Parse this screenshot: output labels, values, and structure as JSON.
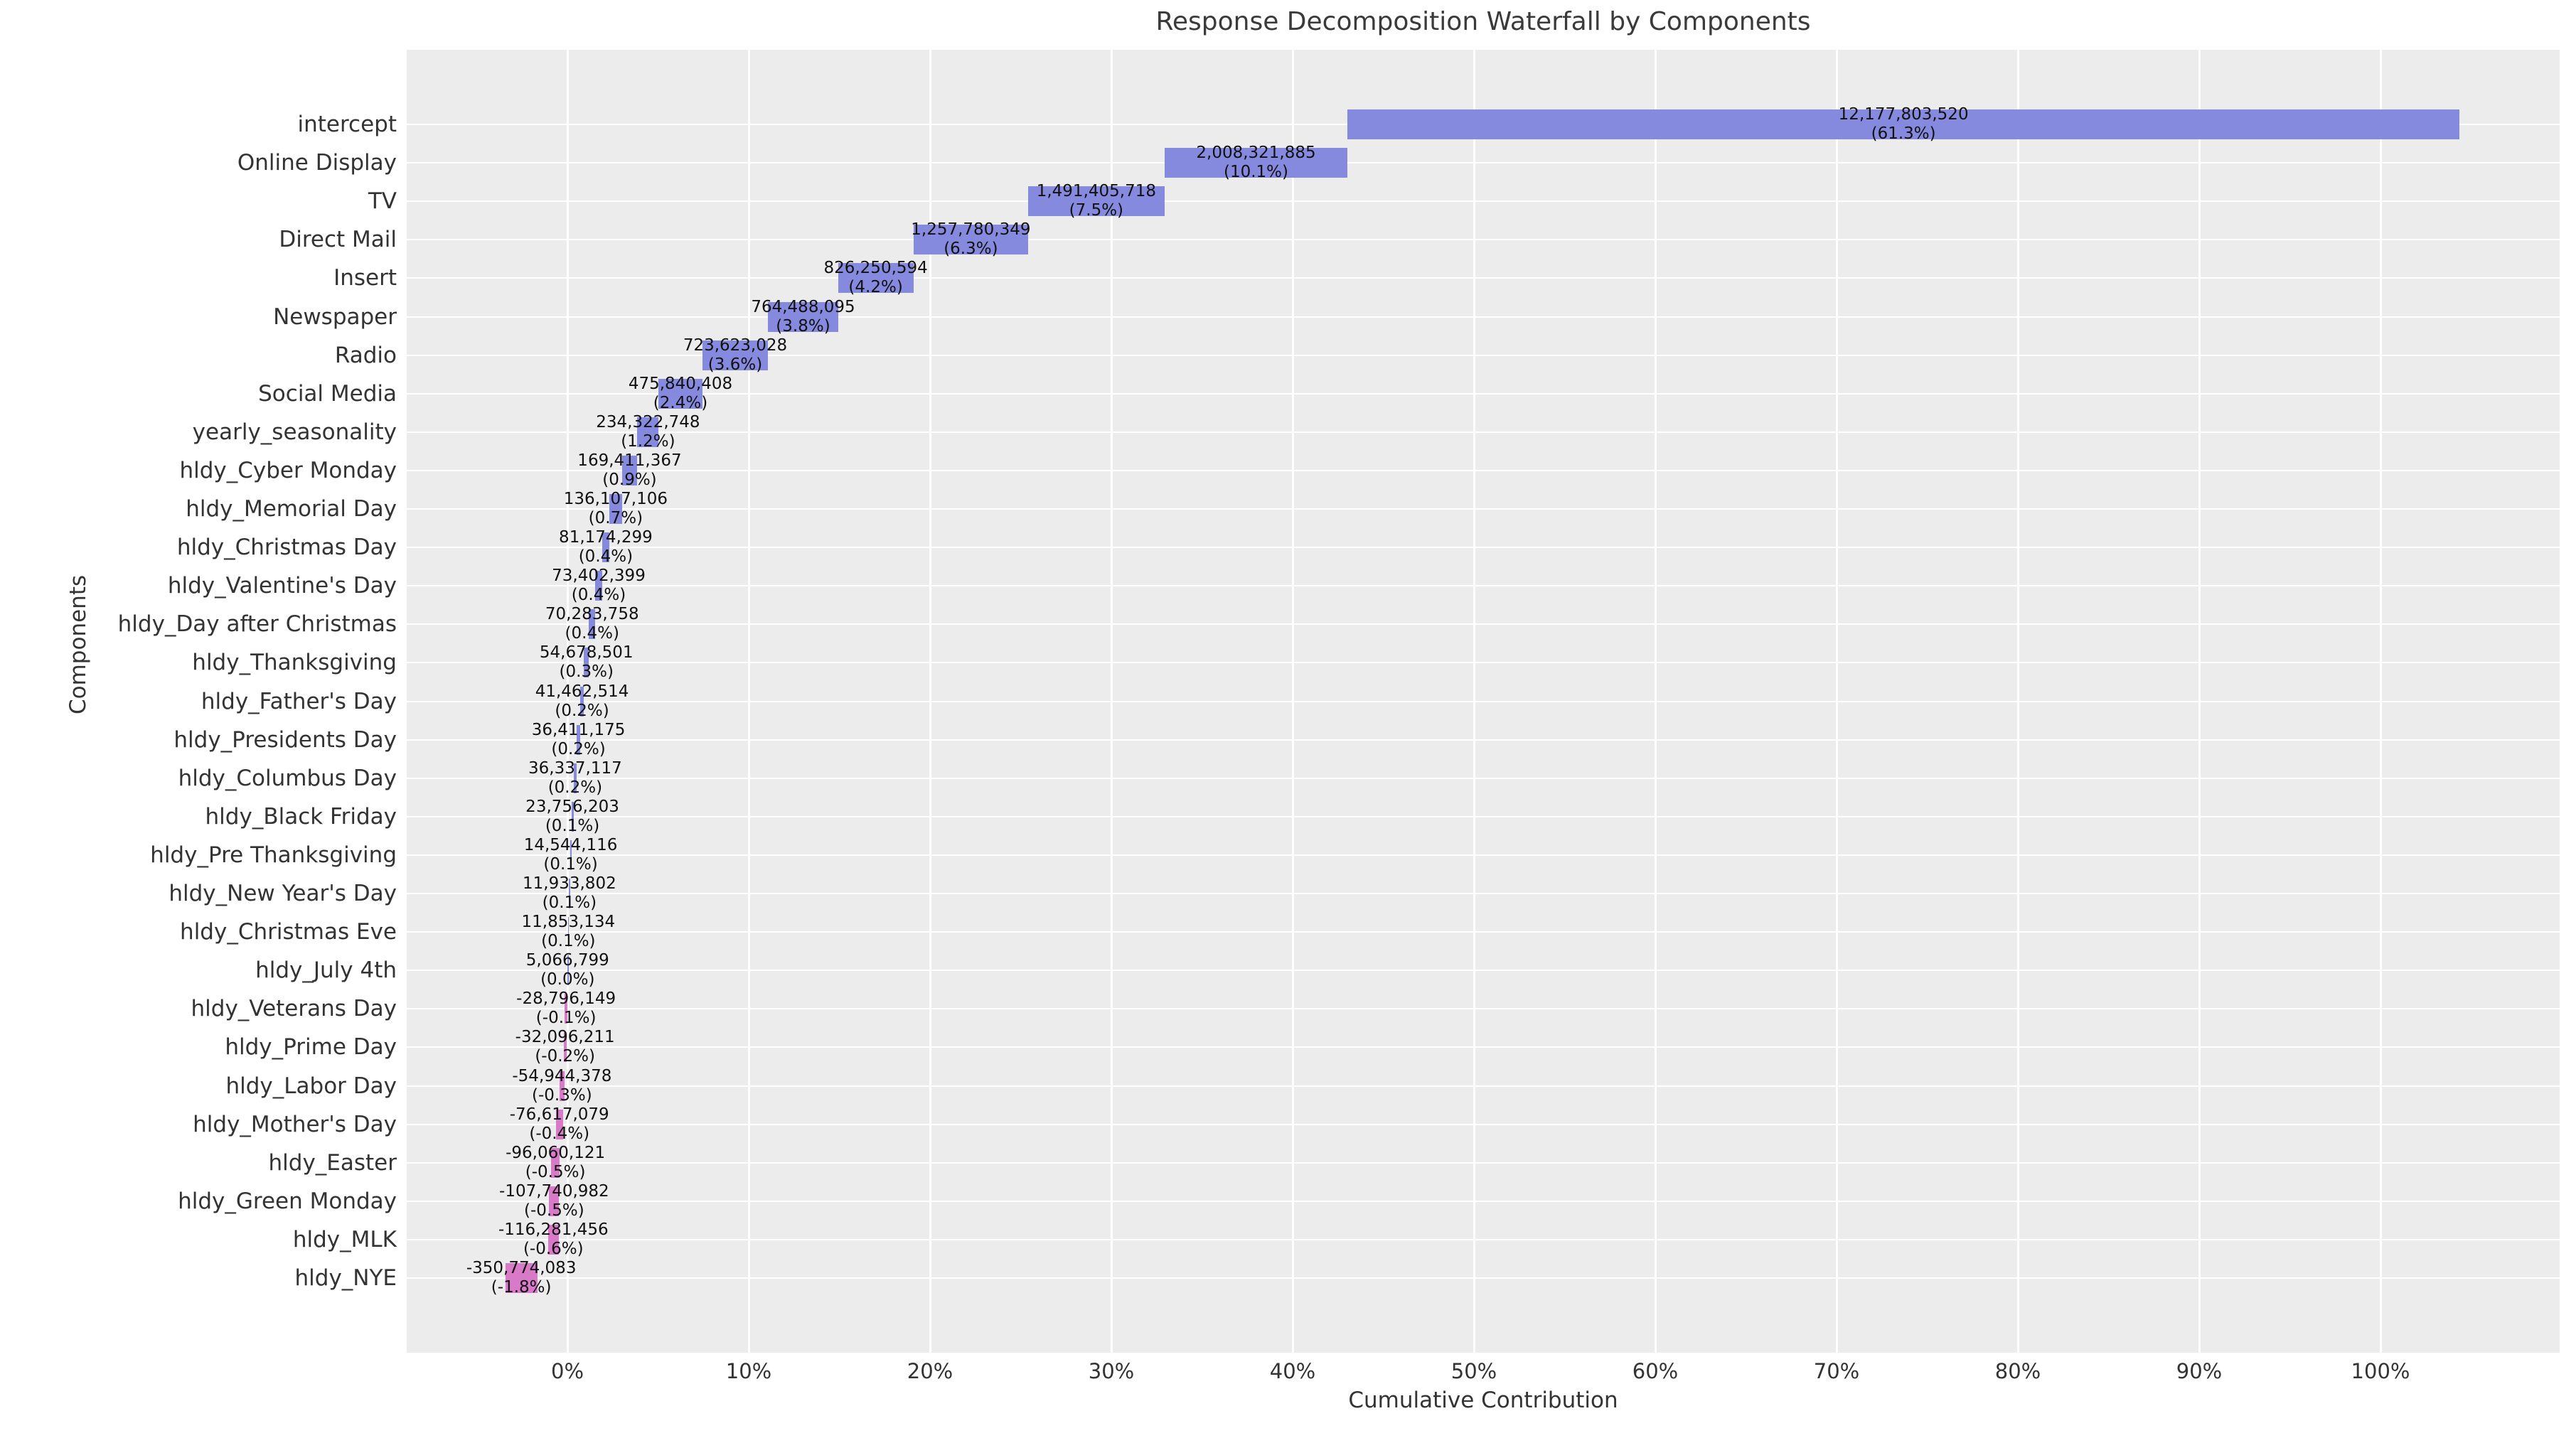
{
  "title": "Response Decomposition Waterfall by Components",
  "x_axis": {
    "label": "Cumulative Contribution",
    "ticks": [
      {
        "label": "0%",
        "value": 0
      },
      {
        "label": "10%",
        "value": 10
      },
      {
        "label": "20%",
        "value": 20
      },
      {
        "label": "30%",
        "value": 30
      },
      {
        "label": "40%",
        "value": 40
      },
      {
        "label": "50%",
        "value": 50
      },
      {
        "label": "60%",
        "value": 60
      },
      {
        "label": "70%",
        "value": 70
      },
      {
        "label": "80%",
        "value": 80
      },
      {
        "label": "90%",
        "value": 90
      },
      {
        "label": "100%",
        "value": 100
      }
    ]
  },
  "y_axis": {
    "label": "Components"
  },
  "chart_data": {
    "type": "bar",
    "subtype": "horizontal-waterfall",
    "title": "Response Decomposition Waterfall by Components",
    "xlabel": "Cumulative Contribution",
    "ylabel": "Components",
    "xlim": [
      -8.9,
      109.9
    ],
    "grid": true,
    "legend": "none",
    "colors": {
      "positive": "#858ade",
      "negative": "#d87ac8",
      "plot_bg": "#ececec",
      "grid": "#ffffff"
    },
    "components": [
      {
        "label": "intercept",
        "value_label": "12,177,803,520",
        "pct_label": "(61.3%)",
        "value": 12177803520,
        "pct": 61.309,
        "x0": 43.037,
        "x1": 104.346,
        "positive": true
      },
      {
        "label": "Online Display",
        "value_label": "2,008,321,885",
        "pct_label": "(10.1%)",
        "value": 2008321885,
        "pct": 10.111,
        "x0": 32.926,
        "x1": 43.037,
        "positive": true
      },
      {
        "label": "TV",
        "value_label": "1,491,405,718",
        "pct_label": "(7.5%)",
        "value": 1491405718,
        "pct": 7.509,
        "x0": 25.417,
        "x1": 32.926,
        "positive": true
      },
      {
        "label": "Direct Mail",
        "value_label": "1,257,780,349",
        "pct_label": "(6.3%)",
        "value": 1257780349,
        "pct": 6.332,
        "x0": 19.085,
        "x1": 25.417,
        "positive": true
      },
      {
        "label": "Insert",
        "value_label": "826,250,594",
        "pct_label": "(4.2%)",
        "value": 826250594,
        "pct": 4.16,
        "x0": 14.925,
        "x1": 19.085,
        "positive": true
      },
      {
        "label": "Newspaper",
        "value_label": "764,488,095",
        "pct_label": "(3.8%)",
        "value": 764488095,
        "pct": 3.849,
        "x0": 11.076,
        "x1": 14.925,
        "positive": true
      },
      {
        "label": "Radio",
        "value_label": "723,623,028",
        "pct_label": "(3.6%)",
        "value": 723623028,
        "pct": 3.643,
        "x0": 7.433,
        "x1": 11.076,
        "positive": true
      },
      {
        "label": "Social Media",
        "value_label": "475,840,408",
        "pct_label": "(2.4%)",
        "value": 475840408,
        "pct": 2.396,
        "x0": 5.037,
        "x1": 7.433,
        "positive": true
      },
      {
        "label": "yearly_seasonality",
        "value_label": "234,322,748",
        "pct_label": "(1.2%)",
        "value": 234322748,
        "pct": 1.18,
        "x0": 3.857,
        "x1": 5.037,
        "positive": true
      },
      {
        "label": "hldy_Cyber Monday",
        "value_label": "169,411,367",
        "pct_label": "(0.9%)",
        "value": 169411367,
        "pct": 0.853,
        "x0": 3.004,
        "x1": 3.857,
        "positive": true
      },
      {
        "label": "hldy_Memorial Day",
        "value_label": "136,107,106",
        "pct_label": "(0.7%)",
        "value": 136107106,
        "pct": 0.685,
        "x0": 2.319,
        "x1": 3.004,
        "positive": true
      },
      {
        "label": "hldy_Christmas Day",
        "value_label": "81,174,299",
        "pct_label": "(0.4%)",
        "value": 81174299,
        "pct": 0.409,
        "x0": 1.91,
        "x1": 2.319,
        "positive": true
      },
      {
        "label": "hldy_Valentine's Day",
        "value_label": "73,402,399",
        "pct_label": "(0.4%)",
        "value": 73402399,
        "pct": 0.37,
        "x0": 1.54,
        "x1": 1.91,
        "positive": true
      },
      {
        "label": "hldy_Day after Christmas",
        "value_label": "70,283,758",
        "pct_label": "(0.4%)",
        "value": 70283758,
        "pct": 0.354,
        "x0": 1.186,
        "x1": 1.54,
        "positive": true
      },
      {
        "label": "hldy_Thanksgiving",
        "value_label": "54,678,501",
        "pct_label": "(0.3%)",
        "value": 54678501,
        "pct": 0.275,
        "x0": 0.911,
        "x1": 1.186,
        "positive": true
      },
      {
        "label": "hldy_Father's Day",
        "value_label": "41,462,514",
        "pct_label": "(0.2%)",
        "value": 41462514,
        "pct": 0.209,
        "x0": 0.702,
        "x1": 0.911,
        "positive": true
      },
      {
        "label": "hldy_Presidents Day",
        "value_label": "36,411,175",
        "pct_label": "(0.2%)",
        "value": 36411175,
        "pct": 0.183,
        "x0": 0.519,
        "x1": 0.702,
        "positive": true
      },
      {
        "label": "hldy_Columbus Day",
        "value_label": "36,337,117",
        "pct_label": "(0.2%)",
        "value": 36337117,
        "pct": 0.183,
        "x0": 0.336,
        "x1": 0.519,
        "positive": true
      },
      {
        "label": "hldy_Black Friday",
        "value_label": "23,756,203",
        "pct_label": "(0.1%)",
        "value": 23756203,
        "pct": 0.12,
        "x0": 0.216,
        "x1": 0.336,
        "positive": true
      },
      {
        "label": "hldy_Pre Thanksgiving",
        "value_label": "14,544,116",
        "pct_label": "(0.1%)",
        "value": 14544116,
        "pct": 0.073,
        "x0": 0.143,
        "x1": 0.216,
        "positive": true
      },
      {
        "label": "hldy_New Year's Day",
        "value_label": "11,933,802",
        "pct_label": "(0.1%)",
        "value": 11933802,
        "pct": 0.06,
        "x0": 0.083,
        "x1": 0.143,
        "positive": true
      },
      {
        "label": "hldy_Christmas Eve",
        "value_label": "11,853,134",
        "pct_label": "(0.1%)",
        "value": 11853134,
        "pct": 0.06,
        "x0": 0.023,
        "x1": 0.083,
        "positive": true
      },
      {
        "label": "hldy_July 4th",
        "value_label": "5,066,799",
        "pct_label": "(0.0%)",
        "value": 5066799,
        "pct": 0.026,
        "x0": 0.0,
        "x1": 0.023,
        "positive": true
      },
      {
        "label": "hldy_Veterans Day",
        "value_label": "-28,796,149",
        "pct_label": "(-0.1%)",
        "value": -28796149,
        "pct": -0.145,
        "x0": -0.145,
        "x1": 0.0,
        "positive": false
      },
      {
        "label": "hldy_Prime Day",
        "value_label": "-32,096,211",
        "pct_label": "(-0.2%)",
        "value": -32096211,
        "pct": -0.162,
        "x0": -0.212,
        "x1": -0.05,
        "positive": false
      },
      {
        "label": "hldy_Labor Day",
        "value_label": "-54,944,378",
        "pct_label": "(-0.3%)",
        "value": -54944378,
        "pct": -0.277,
        "x0": -0.437,
        "x1": -0.16,
        "positive": false
      },
      {
        "label": "hldy_Mother's Day",
        "value_label": "-76,617,079",
        "pct_label": "(-0.4%)",
        "value": -76617079,
        "pct": -0.386,
        "x0": -0.636,
        "x1": -0.25,
        "positive": false
      },
      {
        "label": "hldy_Easter",
        "value_label": "-96,060,121",
        "pct_label": "(-0.5%)",
        "value": -96060121,
        "pct": -0.484,
        "x0": -0.904,
        "x1": -0.42,
        "positive": false
      },
      {
        "label": "hldy_Green Monday",
        "value_label": "-107,740,982",
        "pct_label": "(-0.5%)",
        "value": -107740982,
        "pct": -0.542,
        "x0": -1.002,
        "x1": -0.46,
        "positive": false
      },
      {
        "label": "hldy_MLK",
        "value_label": "-116,281,456",
        "pct_label": "(-0.6%)",
        "value": -116281456,
        "pct": -0.585,
        "x0": -1.065,
        "x1": -0.48,
        "positive": false
      },
      {
        "label": "hldy_NYE",
        "value_label": "-350,774,083",
        "pct_label": "(-1.8%)",
        "value": -350774083,
        "pct": -1.766,
        "x0": -3.426,
        "x1": -1.66,
        "positive": false
      }
    ]
  }
}
